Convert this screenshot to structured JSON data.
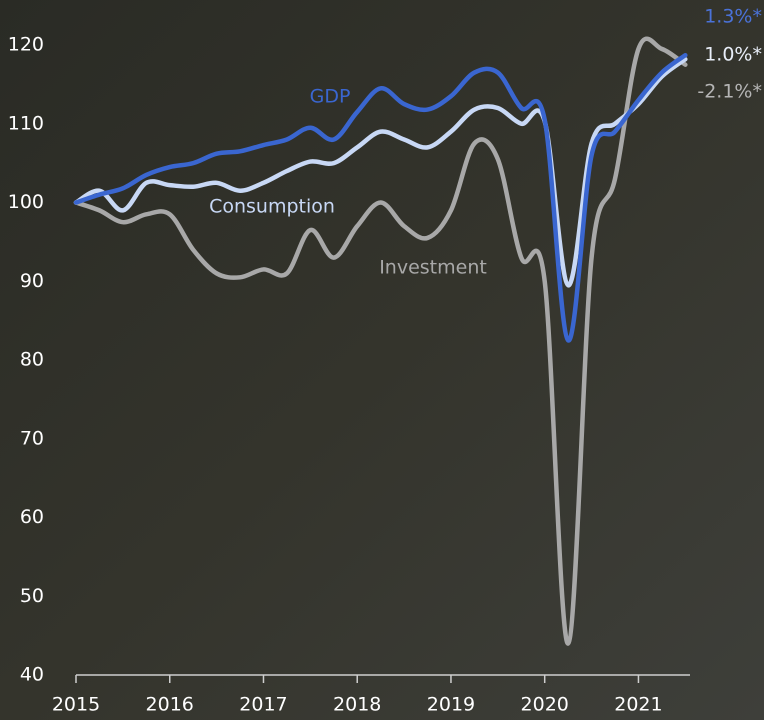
{
  "chart_data": {
    "type": "line",
    "x": [
      2015,
      2015.25,
      2015.5,
      2015.75,
      2016,
      2016.25,
      2016.5,
      2016.75,
      2017,
      2017.25,
      2017.5,
      2017.75,
      2018,
      2018.25,
      2018.5,
      2018.75,
      2019,
      2019.25,
      2019.5,
      2019.75,
      2020,
      2020.25,
      2020.5,
      2020.75,
      2021,
      2021.25,
      2021.5
    ],
    "series": [
      {
        "name": "GDP",
        "color": "#3a66d0",
        "end_label": "1.3%*",
        "values": [
          100,
          101,
          101.8,
          103.5,
          104.5,
          105,
          106.2,
          106.5,
          107.3,
          108,
          109.5,
          108,
          111.5,
          114.5,
          112.5,
          111.8,
          113.5,
          116.5,
          116.5,
          112,
          110.5,
          82.5,
          106,
          109,
          113,
          116.5,
          118.7
        ]
      },
      {
        "name": "Consumption",
        "color": "#c8d8f5",
        "end_label": "1.0%*",
        "values": [
          100,
          101.5,
          99,
          102.5,
          102.2,
          102,
          102.5,
          101.5,
          102.5,
          104,
          105.2,
          105,
          107,
          109,
          108,
          107,
          109,
          111.8,
          112,
          110,
          110.3,
          89.5,
          107.5,
          110,
          112.5,
          116,
          118.2
        ]
      },
      {
        "name": "Investment",
        "color": "#a8a8a8",
        "end_label": "-2.1%*",
        "values": [
          100,
          99,
          97.5,
          98.5,
          98.5,
          94,
          91,
          90.5,
          91.5,
          91,
          96.5,
          93,
          97,
          100,
          97,
          95.5,
          99,
          107.5,
          105.5,
          93,
          90,
          44,
          93,
          103,
          119.5,
          119.5,
          117.5
        ]
      }
    ],
    "xlim": [
      2015,
      2021.55
    ],
    "xticks": [
      2015,
      2016,
      2017,
      2018,
      2019,
      2020,
      2021
    ],
    "ylim": [
      40,
      120
    ],
    "yticks": [
      40,
      50,
      60,
      70,
      80,
      90,
      100,
      110,
      120
    ]
  }
}
